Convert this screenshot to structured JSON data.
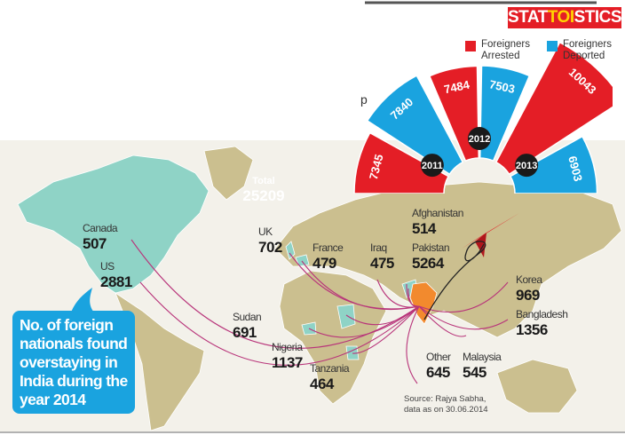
{
  "brand": {
    "pre": "STAT",
    "mid": "TOI",
    "post": "STICS"
  },
  "colors": {
    "arrested": "#e41e26",
    "deported": "#1aa3df",
    "land": "#cbbf8f",
    "highlight": "#8fd3c6",
    "india": "#f28a2e",
    "arc": "#b8347a"
  },
  "cut_text": "p",
  "total": {
    "label": "Total",
    "value": "25209"
  },
  "callout": "No. of foreign nationals found overstaying in India during the year 2014",
  "source": {
    "line1": "Source: Rajya Sabha,",
    "line2": "data as on 30.06.2014"
  },
  "countries": [
    {
      "name": "Canada",
      "value": "507"
    },
    {
      "name": "US",
      "value": "2881"
    },
    {
      "name": "UK",
      "value": "702"
    },
    {
      "name": "France",
      "value": "479"
    },
    {
      "name": "Iraq",
      "value": "475"
    },
    {
      "name": "Afghanistan",
      "value": "514"
    },
    {
      "name": "Pakistan",
      "value": "5264"
    },
    {
      "name": "Korea",
      "value": "969"
    },
    {
      "name": "Bangladesh",
      "value": "1356"
    },
    {
      "name": "Sudan",
      "value": "691"
    },
    {
      "name": "Nigeria",
      "value": "1137"
    },
    {
      "name": "Tanzania",
      "value": "464"
    },
    {
      "name": "Other",
      "value": "645"
    },
    {
      "name": "Malaysia",
      "value": "545"
    }
  ],
  "chart_data": {
    "type": "bar",
    "subtype": "radial",
    "categories": [
      "2011",
      "2012",
      "2013"
    ],
    "series": [
      {
        "name": "Foreigners Arrested",
        "values": [
          7345,
          7484,
          10043
        ]
      },
      {
        "name": "Foreigners Deported",
        "values": [
          7840,
          7503,
          6903
        ]
      }
    ],
    "legend": {
      "position": "top-right",
      "items": [
        "Foreigners Arrested",
        "Foreigners Deported"
      ]
    }
  }
}
